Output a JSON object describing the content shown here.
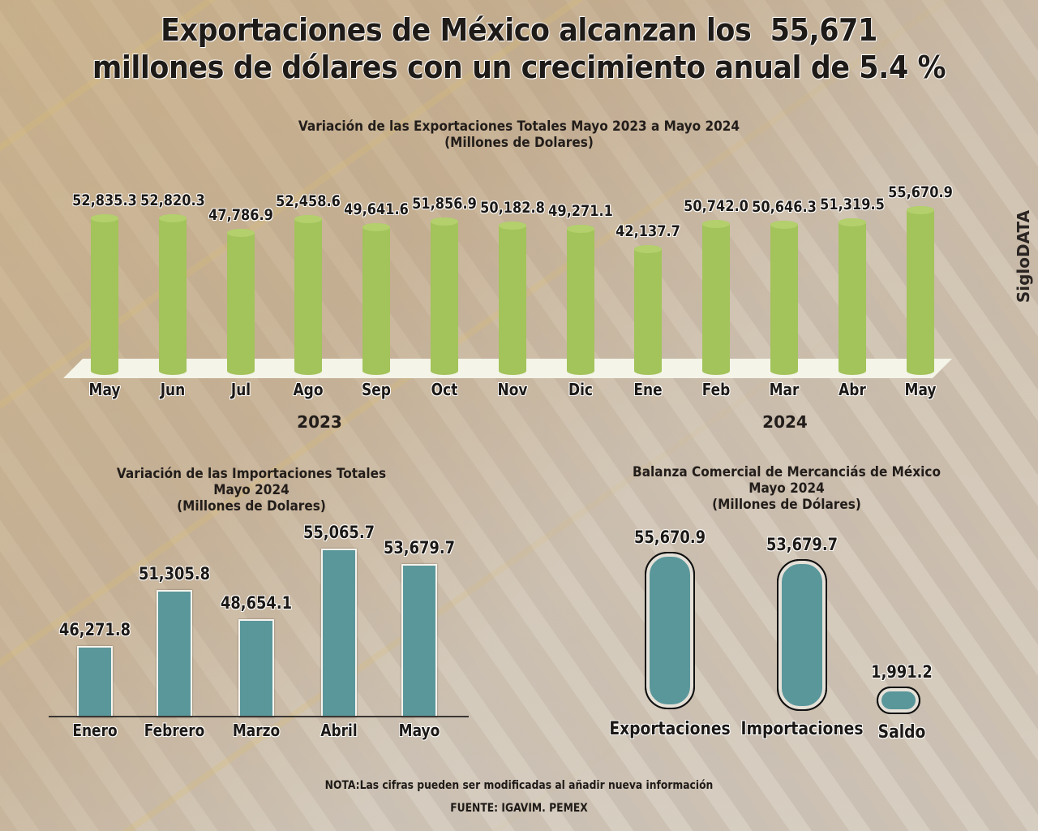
{
  "header": {
    "title_line1": "Exportaciones de México alcanzan los  55,671",
    "title_line2": "millones de dólares con un crecimiento anual de 5.4 %"
  },
  "brand": "SigloDATA",
  "footer": {
    "note": "NOTA:Las cifras pueden ser modificadas al añadir nueva información",
    "source": "FUENTE: IGAVIM. PEMEX"
  },
  "colors": {
    "export_bar": "#a3c35b",
    "import_bar": "#5a979b",
    "text": "#1e1a17"
  },
  "chart_data": [
    {
      "type": "bar",
      "title": "Variación de las Exportaciones Totales Mayo 2023 a Mayo 2024",
      "subtitle": "(Millones de Dolares)",
      "categories": [
        "May",
        "Jun",
        "Jul",
        "Ago",
        "Sep",
        "Oct",
        "Nov",
        "Dic",
        "Ene",
        "Feb",
        "Mar",
        "Abr",
        "May"
      ],
      "values": [
        52835.3,
        52820.3,
        47786.9,
        52458.6,
        49641.6,
        51856.9,
        50182.8,
        49271.1,
        42137.7,
        50742.0,
        50646.3,
        51319.5,
        55670.9
      ],
      "labels": [
        "52,835.3",
        "52,820.3",
        "47,786.9",
        "52,458.6",
        "49,641.6",
        "51,856.9",
        "50,182.8",
        "49,271.1",
        "42,137.7",
        "50,742.0",
        "50,646.3",
        "51,319.5",
        "55,670.9"
      ],
      "year_groups": [
        "2023",
        "2024"
      ],
      "xlabel": "",
      "ylabel": "",
      "grid": false
    },
    {
      "type": "bar",
      "title": "Variación de las Importaciones Totales",
      "title_line2": "Mayo 2024",
      "subtitle": "(Millones de Dolares)",
      "categories": [
        "Enero",
        "Febrero",
        "Marzo",
        "Abril",
        "Mayo"
      ],
      "values": [
        46271.8,
        51305.8,
        48654.1,
        55065.7,
        53679.7
      ],
      "labels": [
        "46,271.8",
        "51,305.8",
        "48,654.1",
        "55,065.7",
        "53,679.7"
      ],
      "xlabel": "",
      "ylabel": "",
      "grid": false
    },
    {
      "type": "bar",
      "title": "Balanza Comercial de Mercanciás de México",
      "title_line2": "Mayo 2024",
      "subtitle": "(Millones de Dólares)",
      "categories": [
        "Exportaciones",
        "Importaciones",
        "Saldo"
      ],
      "values": [
        55670.9,
        53679.7,
        1991.2
      ],
      "labels": [
        "55,670.9",
        "53,679.7",
        "1,991.2"
      ],
      "xlabel": "",
      "ylabel": "",
      "grid": false
    }
  ]
}
